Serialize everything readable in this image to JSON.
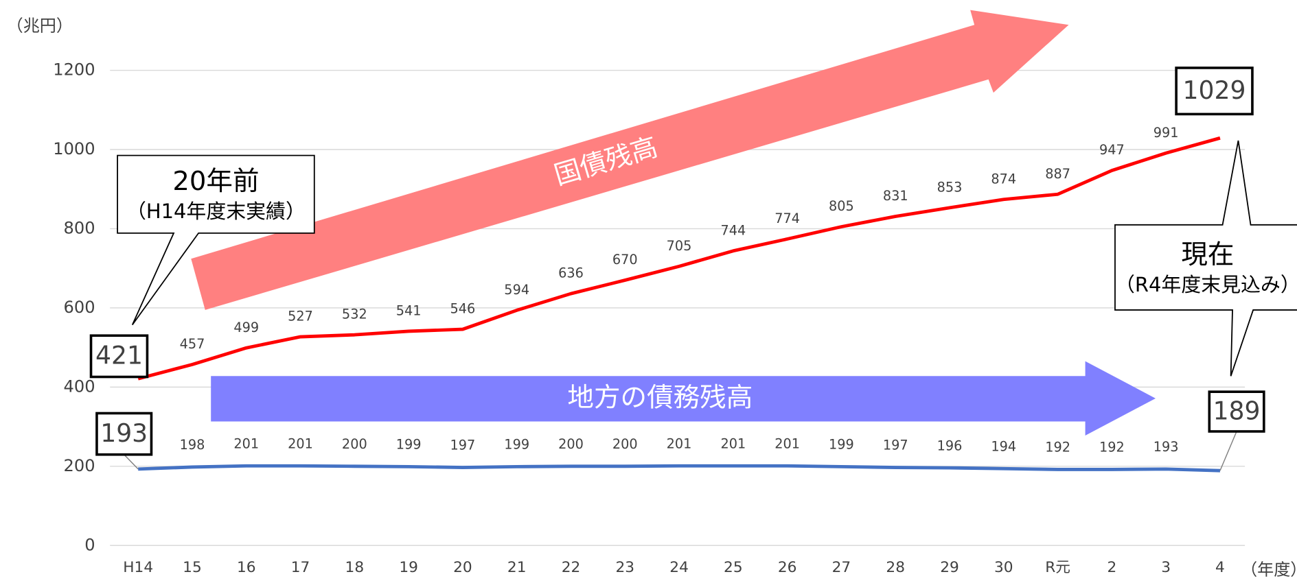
{
  "chart_data": {
    "type": "line",
    "y_unit": "（兆円）",
    "x_unit": "（年度）",
    "categories": [
      "H14",
      "15",
      "16",
      "17",
      "18",
      "19",
      "20",
      "21",
      "22",
      "23",
      "24",
      "25",
      "26",
      "27",
      "28",
      "29",
      "30",
      "R元",
      "2",
      "3",
      "4"
    ],
    "series": [
      {
        "name": "国債残高",
        "color": "#ff0000",
        "arrow_color": "#ff8080",
        "values": [
          421,
          457,
          499,
          527,
          532,
          541,
          546,
          594,
          636,
          670,
          705,
          744,
          774,
          805,
          831,
          853,
          874,
          887,
          947,
          991,
          1029
        ]
      },
      {
        "name": "地方の債務残高",
        "color": "#4472c4",
        "arrow_color": "#8080ff",
        "values": [
          193,
          198,
          201,
          201,
          200,
          199,
          197,
          199,
          200,
          200,
          201,
          201,
          201,
          199,
          197,
          196,
          194,
          192,
          192,
          193,
          189
        ]
      }
    ],
    "ylim": [
      0,
      1200
    ],
    "yticks": [
      0,
      200,
      400,
      600,
      800,
      1000,
      1200
    ],
    "grid": true,
    "annotations": [
      {
        "title": "20年前",
        "subtitle": "（H14年度末実績）"
      },
      {
        "title": "現在",
        "subtitle": "（R4年度末見込み）"
      }
    ]
  }
}
